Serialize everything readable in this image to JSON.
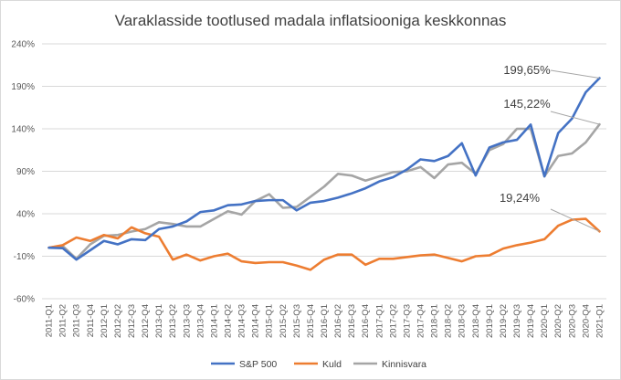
{
  "chart_data": {
    "type": "line",
    "title": "Varaklasside tootlused madala inflatsiooniga keskkonnas",
    "xlabel": "",
    "ylabel": "",
    "ylim": [
      -60,
      240
    ],
    "yticks": [
      -60,
      -10,
      40,
      90,
      140,
      190,
      240
    ],
    "ytick_labels": [
      "-60%",
      "-10%",
      "40%",
      "90%",
      "140%",
      "190%",
      "240%"
    ],
    "grid": true,
    "legend_position": "bottom",
    "categories": [
      "2011-Q1",
      "2011-Q2",
      "2011-Q3",
      "2011-Q4",
      "2012-Q1",
      "2012-Q2",
      "2012-Q3",
      "2012-Q4",
      "2013-Q1",
      "2013-Q2",
      "2013-Q3",
      "2013-Q4",
      "2014-Q1",
      "2014-Q2",
      "2014-Q3",
      "2014-Q4",
      "2015-Q1",
      "2015-Q2",
      "2015-Q3",
      "2015-Q4",
      "2016-Q1",
      "2016-Q2",
      "2016-Q3",
      "2016-Q4",
      "2017-Q1",
      "2017-Q2",
      "2017-Q3",
      "2017-Q4",
      "2018-Q1",
      "2018-Q2",
      "2018-Q3",
      "2018-Q4",
      "2019-Q1",
      "2019-Q2",
      "2019-Q3",
      "2019-Q4",
      "2020-Q1",
      "2020-Q2",
      "2020-Q3",
      "2020-Q4",
      "2021-Q1"
    ],
    "series": [
      {
        "name": "S&P 500",
        "color": "#4472C4",
        "values": [
          0,
          -0.5,
          -14,
          -3,
          8,
          4,
          10,
          9,
          22,
          25,
          31,
          42,
          44,
          50,
          51,
          55,
          56,
          56,
          44,
          53,
          55,
          59,
          64,
          70,
          78,
          83,
          92,
          104,
          102,
          108,
          123,
          85,
          118,
          124,
          127,
          145,
          84,
          135,
          152,
          183,
          199.65
        ]
      },
      {
        "name": "Kuld",
        "color": "#ED7D31",
        "values": [
          0,
          3,
          12,
          8,
          15,
          11,
          24,
          17,
          13,
          -14,
          -8,
          -15,
          -10,
          -7,
          -16,
          -18,
          -17,
          -17,
          -21,
          -26,
          -14,
          -8,
          -8,
          -20,
          -13,
          -13,
          -11,
          -9,
          -8,
          -12,
          -16,
          -10,
          -9,
          -1,
          3,
          6,
          10,
          26,
          33,
          34,
          19.24
        ]
      },
      {
        "name": "Kinnisvara",
        "color": "#A5A5A5",
        "values": [
          0,
          2,
          -13,
          4,
          14,
          15,
          19,
          22,
          30,
          28,
          25,
          25,
          34,
          43,
          39,
          55,
          63,
          47,
          48,
          60,
          72,
          87,
          85,
          79,
          84,
          89,
          90,
          95,
          82,
          98,
          100,
          87,
          115,
          122,
          140,
          140,
          84,
          108,
          111,
          124,
          145.22
        ]
      }
    ],
    "annotations": [
      {
        "text": "199,65%",
        "series": "S&P 500",
        "category": "2021-Q1"
      },
      {
        "text": "145,22%",
        "series": "Kinnisvara",
        "category": "2021-Q1"
      },
      {
        "text": "19,24%",
        "series": "Kuld",
        "category": "2021-Q1"
      }
    ]
  }
}
